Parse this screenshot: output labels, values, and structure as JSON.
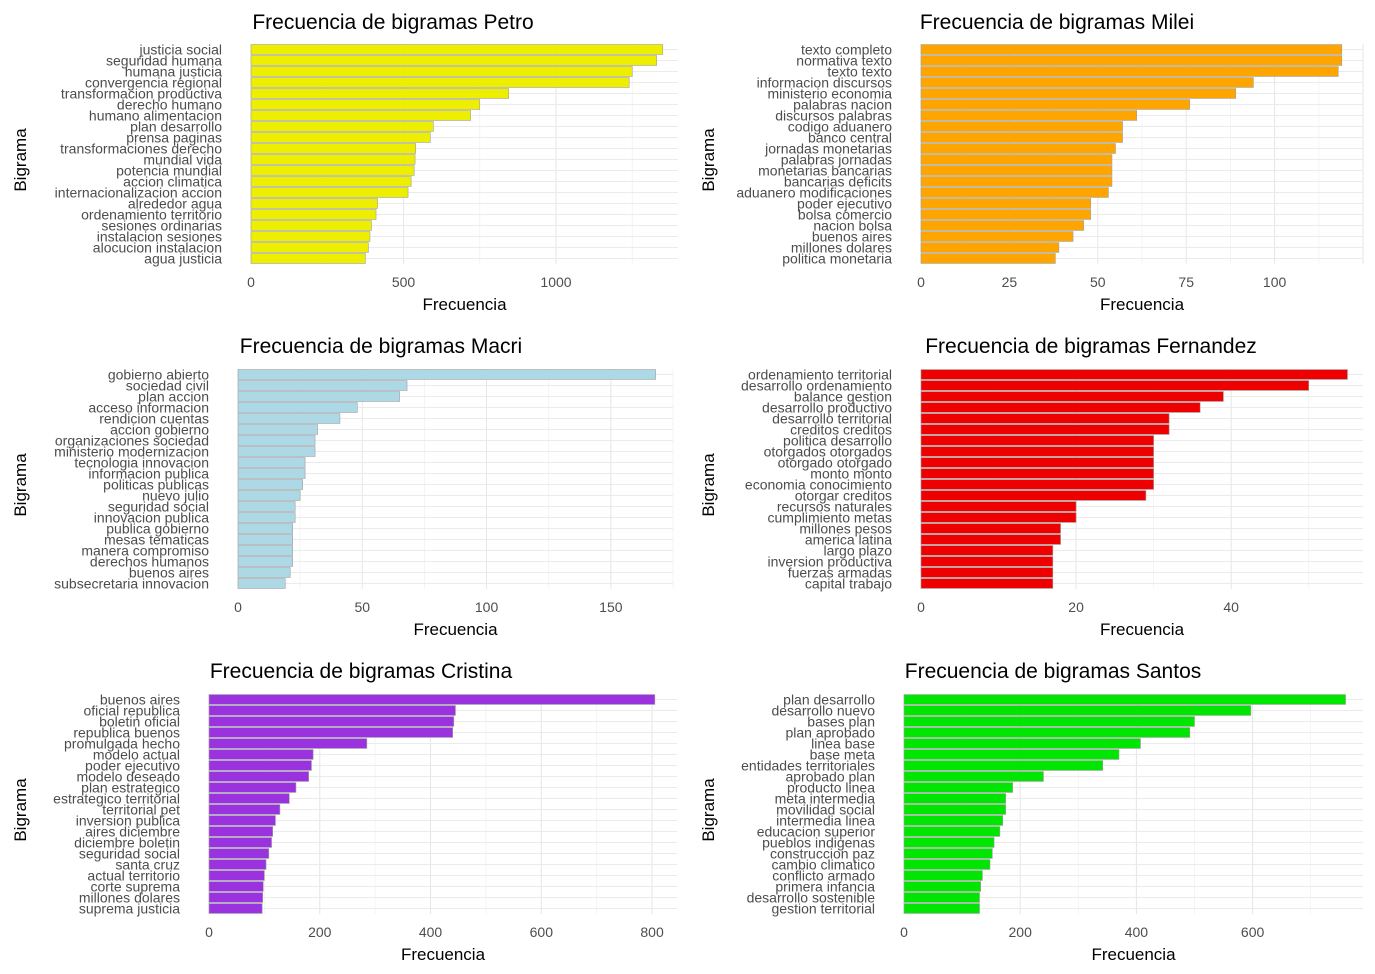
{
  "chart_data": [
    {
      "type": "bar",
      "orientation": "horizontal",
      "title": "Frecuencia de bigramas Petro",
      "xlabel": "Frecuencia",
      "ylabel": "Bigrama",
      "color": "#EEEE00",
      "xlim": [
        0,
        1400
      ],
      "xticks": [
        0,
        500,
        1000
      ],
      "grid": true,
      "categories": [
        "justicia social",
        "seguridad humana",
        "humana justicia",
        "convergencia regional",
        "transformacion productiva",
        "derecho humano",
        "humano alimentacion",
        "plan desarrollo",
        "prensa paginas",
        "transformaciones derecho",
        "mundial vida",
        "potencia mundial",
        "accion climatica",
        "internacionalizacion accion",
        "alrededor agua",
        "ordenamiento territorio",
        "sesiones ordinarias",
        "instalacion sesiones",
        "alocucion instalacion",
        "agua justicia"
      ],
      "values": [
        1350,
        1330,
        1250,
        1240,
        845,
        750,
        720,
        598,
        588,
        540,
        538,
        535,
        525,
        515,
        415,
        410,
        395,
        390,
        385,
        375
      ]
    },
    {
      "type": "bar",
      "orientation": "horizontal",
      "title": "Frecuencia de bigramas Milei",
      "xlabel": "Frecuencia",
      "ylabel": "Bigrama",
      "color": "#FFA500",
      "xlim": [
        0,
        125
      ],
      "xticks": [
        0,
        25,
        50,
        75,
        100
      ],
      "grid": true,
      "categories": [
        "texto completo",
        "normativa texto",
        "texto texto",
        "informacion discursos",
        "ministerio economia",
        "palabras nacion",
        "discursos palabras",
        "codigo aduanero",
        "banco central",
        "jornadas monetarias",
        "palabras jornadas",
        "monetarias bancarias",
        "bancarias deficits",
        "aduanero modificaciones",
        "poder ejecutivo",
        "bolsa comercio",
        "nacion bolsa",
        "buenos aires",
        "millones dolares",
        "politica monetaria"
      ],
      "values": [
        119,
        119,
        118,
        94,
        89,
        76,
        61,
        57,
        57,
        55,
        54,
        54,
        54,
        53,
        48,
        48,
        46,
        43,
        39,
        38
      ]
    },
    {
      "type": "bar",
      "orientation": "horizontal",
      "title": "Frecuencia de bigramas Macri",
      "xlabel": "Frecuencia",
      "ylabel": "Bigrama",
      "color": "#ADD8E6",
      "xlim": [
        0,
        175
      ],
      "xticks": [
        0,
        50,
        100,
        150
      ],
      "grid": true,
      "categories": [
        "gobierno abierto",
        "sociedad civil",
        "plan accion",
        "acceso informacion",
        "rendicion cuentas",
        "accion gobierno",
        "organizaciones sociedad",
        "ministerio modernizacion",
        "tecnologia innovacion",
        "informacion publica",
        "politicas publicas",
        "nuevo julio",
        "seguridad social",
        "innovacion publica",
        "publica gobierno",
        "mesas tematicas",
        "manera compromiso",
        "derechos humanos",
        "buenos aires",
        "subsecretaria innovacion"
      ],
      "values": [
        168,
        68,
        65,
        48,
        41,
        32,
        31,
        31,
        27,
        27,
        26,
        25,
        23,
        23,
        22,
        22,
        22,
        22,
        21,
        19
      ]
    },
    {
      "type": "bar",
      "orientation": "horizontal",
      "title": "Frecuencia de bigramas Fernandez",
      "xlabel": "Frecuencia",
      "ylabel": "Bigrama",
      "color": "#EE0000",
      "xlim": [
        0,
        57
      ],
      "xticks": [
        0,
        20,
        40
      ],
      "grid": true,
      "categories": [
        "ordenamiento territorial",
        "desarrollo ordenamiento",
        "balance gestion",
        "desarrollo productivo",
        "desarrollo territorial",
        "creditos creditos",
        "politica desarrollo",
        "otorgados otorgados",
        "otorgado otorgado",
        "monto monto",
        "economia conocimiento",
        "otorgar creditos",
        "recursos naturales",
        "cumplimiento metas",
        "millones pesos",
        "america latina",
        "largo plazo",
        "inversion productiva",
        "fuerzas armadas",
        "capital trabajo"
      ],
      "values": [
        55,
        50,
        39,
        36,
        32,
        32,
        30,
        30,
        30,
        30,
        30,
        29,
        20,
        20,
        18,
        18,
        17,
        17,
        17,
        17
      ]
    },
    {
      "type": "bar",
      "orientation": "horizontal",
      "title": "Frecuencia de bigramas Cristina",
      "xlabel": "Frecuencia",
      "ylabel": "Bigrama",
      "color": "#9A32E0",
      "xlim": [
        0,
        845
      ],
      "xticks": [
        0,
        200,
        400,
        600,
        800
      ],
      "grid": true,
      "categories": [
        "buenos aires",
        "oficial republica",
        "boletin oficial",
        "republica buenos",
        "promulgada hecho",
        "modelo actual",
        "poder ejecutivo",
        "modelo deseado",
        "plan estrategico",
        "estrategico territorial",
        "territorial pet",
        "inversion publica",
        "aires diciembre",
        "diciembre boletin",
        "seguridad social",
        "santa cruz",
        "actual territorio",
        "corte suprema",
        "millones dolares",
        "suprema justicia"
      ],
      "values": [
        805,
        445,
        442,
        440,
        285,
        188,
        185,
        180,
        157,
        145,
        128,
        120,
        115,
        113,
        108,
        103,
        100,
        98,
        97,
        96
      ]
    },
    {
      "type": "bar",
      "orientation": "horizontal",
      "title": "Frecuencia de bigramas Santos",
      "xlabel": "Frecuencia",
      "ylabel": "Bigrama",
      "color": "#00E600",
      "xlim": [
        0,
        790
      ],
      "xticks": [
        0,
        200,
        400,
        600
      ],
      "grid": true,
      "categories": [
        "plan desarrollo",
        "desarrollo nuevo",
        "bases plan",
        "plan aprobado",
        "linea base",
        "base meta",
        "entidades territoriales",
        "aprobado plan",
        "producto linea",
        "meta intermedia",
        "movilidad social",
        "intermedia linea",
        "educacion superior",
        "pueblos indigenas",
        "construccion paz",
        "cambio climatico",
        "conflicto armado",
        "primera infancia",
        "desarrollo sostenible",
        "gestion territorial"
      ],
      "values": [
        760,
        597,
        500,
        492,
        407,
        370,
        342,
        240,
        187,
        175,
        175,
        170,
        165,
        155,
        152,
        148,
        135,
        132,
        130,
        130
      ]
    }
  ]
}
